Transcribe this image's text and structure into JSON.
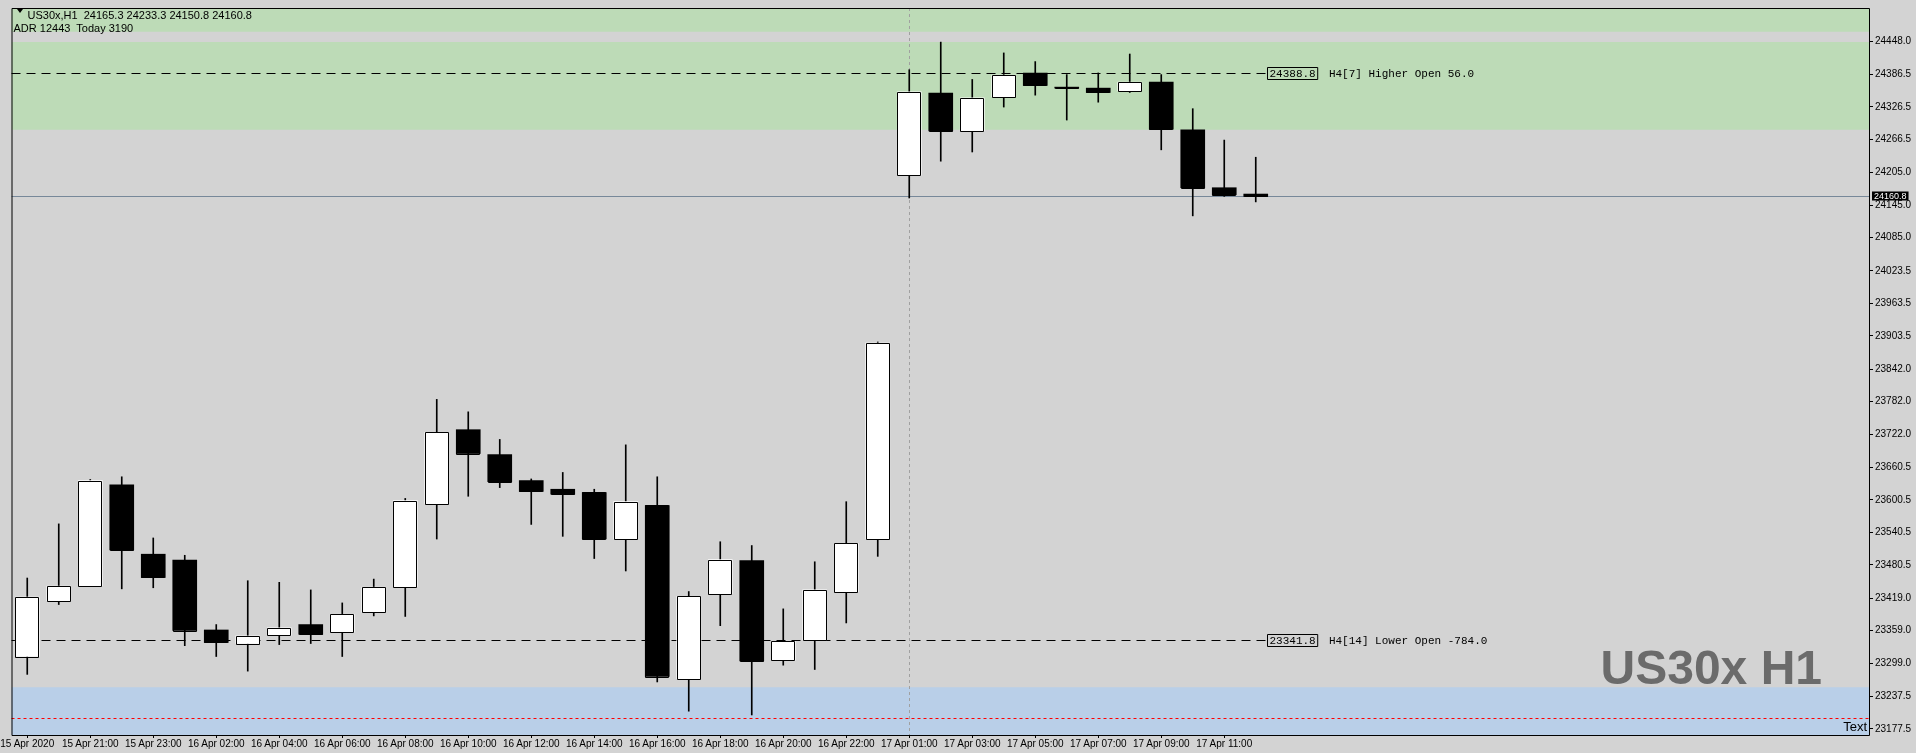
{
  "chart_data": {
    "type": "candlestick",
    "title": "US30x,H1  24165.3 24233.3 24150.8 24160.8",
    "subtitle": "ADR 12443  Today 3190",
    "categories": [
      "15 Apr 2020",
      null,
      "15 Apr 21:00",
      null,
      "15 Apr 23:00",
      null,
      "16 Apr 02:00",
      null,
      "16 Apr 04:00",
      null,
      "16 Apr 06:00",
      null,
      "16 Apr 08:00",
      null,
      "16 Apr 10:00",
      null,
      "16 Apr 12:00",
      null,
      "16 Apr 14:00",
      null,
      "16 Apr 16:00",
      null,
      "16 Apr 18:00",
      null,
      "16 Apr 20:00",
      null,
      "16 Apr 22:00",
      null,
      "17 Apr 01:00",
      null,
      "17 Apr 03:00",
      null,
      "17 Apr 05:00",
      null,
      "17 Apr 07:00",
      null,
      "17 Apr 09:00",
      null,
      "17 Apr 11:00",
      null,
      null,
      null,
      null,
      null,
      null,
      null,
      null,
      null,
      null,
      null,
      null,
      null,
      null,
      null,
      null,
      null,
      null,
      null,
      null
    ],
    "ohlc": [
      [
        23311,
        23456,
        23278,
        23421
      ],
      [
        23414,
        23556,
        23407,
        23441
      ],
      [
        23442,
        23638,
        23441,
        23636
      ],
      [
        23628,
        23643,
        23436,
        23508
      ],
      [
        23500,
        23530,
        23438,
        23457
      ],
      [
        23489,
        23498,
        23331,
        23359
      ],
      [
        23360,
        23370,
        23311,
        23337
      ],
      [
        23335,
        23451,
        23284,
        23349
      ],
      [
        23350,
        23448,
        23333,
        23364
      ],
      [
        23370,
        23434,
        23335,
        23352
      ],
      [
        23356,
        23410,
        23311,
        23389
      ],
      [
        23393,
        23454,
        23386,
        23439
      ],
      [
        23440,
        23603,
        23385,
        23599
      ],
      [
        23593,
        23786,
        23528,
        23725
      ],
      [
        23730,
        23763,
        23607,
        23686
      ],
      [
        23684,
        23712,
        23623,
        23634
      ],
      [
        23636,
        23639,
        23555,
        23616
      ],
      [
        23620,
        23651,
        23533,
        23611
      ],
      [
        23614,
        23620,
        23492,
        23528
      ],
      [
        23528,
        23702,
        23469,
        23597
      ],
      [
        23590,
        23643,
        23264,
        23274
      ],
      [
        23270,
        23431,
        23210,
        23422
      ],
      [
        23427,
        23523,
        23368,
        23490
      ],
      [
        23488,
        23516,
        23203,
        23303
      ],
      [
        23304,
        23399,
        23295,
        23339
      ],
      [
        23341.8,
        23486,
        23287,
        23434
      ],
      [
        23431,
        23597,
        23373,
        23520
      ],
      [
        23528,
        23892,
        23496,
        23890
      ],
      [
        24200,
        24395,
        24158,
        24354
      ],
      [
        24352,
        24446,
        24226,
        24282
      ],
      [
        24282,
        24377,
        24243,
        24343
      ],
      [
        24345,
        24426,
        24326,
        24385
      ],
      [
        24388.8,
        24410,
        24348,
        24366
      ],
      [
        24362,
        24386,
        24302,
        24361
      ],
      [
        24361,
        24389,
        24335,
        24353
      ],
      [
        24356,
        24424,
        24353,
        24372
      ],
      [
        24372,
        24386,
        24247,
        24285
      ],
      [
        24284,
        24323,
        24125,
        24177
      ],
      [
        24177,
        24265,
        24161,
        24164
      ],
      [
        24165.3,
        24233.3,
        24150.8,
        24160.8
      ],
      null,
      null,
      null,
      null,
      null,
      null,
      null,
      null,
      null,
      null,
      null,
      null,
      null,
      null,
      null,
      null,
      null,
      null,
      null
    ],
    "colors": [
      "#ffffff",
      "#ffffff",
      "#ffffff",
      "#000000",
      "#000000",
      "#000000",
      "#000000",
      "#ffffff",
      "#ffffff",
      "#000000",
      "#ffffff",
      "#ffffff",
      "#ffffff",
      "#ffffff",
      "#000000",
      "#000000",
      "#000000",
      "#000000",
      "#000000",
      "#ffffff",
      "#000000",
      "#ffffff",
      "#ffffff",
      "#000000",
      "#ffffff",
      "#ffffff",
      "#ffffff",
      "#ffffff",
      "#ffffff",
      "#000000",
      "#ffffff",
      "#ffffff",
      "#000000",
      "#000000",
      "#000000",
      "#ffffff",
      "#000000",
      "#000000",
      "#000000",
      "#000000",
      null,
      null,
      null,
      null,
      null,
      null,
      null,
      null,
      null,
      null,
      null,
      null,
      null,
      null,
      null,
      null,
      null,
      null,
      null
    ],
    "ylim": [
      23166,
      24509
    ],
    "yticks": [
      {
        "value": 24448,
        "label": "24448.0"
      },
      {
        "value": 24386.5,
        "label": "24386.5"
      },
      {
        "value": 24326.5,
        "label": "24326.5"
      },
      {
        "value": 24266.5,
        "label": "24266.5"
      },
      {
        "value": 24205,
        "label": "24205.0"
      },
      {
        "value": 24145,
        "label": "24145.0"
      },
      {
        "value": 24085,
        "label": "24085.0"
      },
      {
        "value": 24023.5,
        "label": "24023.5"
      },
      {
        "value": 23963.5,
        "label": "23963.5"
      },
      {
        "value": 23903.5,
        "label": "23903.5"
      },
      {
        "value": 23842,
        "label": "23842.0"
      },
      {
        "value": 23782,
        "label": "23782.0"
      },
      {
        "value": 23722,
        "label": "23722.0"
      },
      {
        "value": 23660.5,
        "label": "23660.5"
      },
      {
        "value": 23600.5,
        "label": "23600.5"
      },
      {
        "value": 23540.5,
        "label": "23540.5"
      },
      {
        "value": 23480.5,
        "label": "23480.5"
      },
      {
        "value": 23419,
        "label": "23419.0"
      },
      {
        "value": 23359,
        "label": "23359.0"
      },
      {
        "value": 23299,
        "label": "23299.0"
      },
      {
        "value": 23237.5,
        "label": "23237.5"
      },
      {
        "value": 23177.5,
        "label": "23177.5"
      }
    ],
    "bands": [
      {
        "axis": "y",
        "from": 24465,
        "to": 24509,
        "color": "#bddbb7"
      },
      {
        "axis": "y",
        "from": 24284,
        "to": 24446,
        "color": "#bddbb7"
      },
      {
        "axis": "y",
        "from": 23166,
        "to": 23254,
        "color": "#b9cfe8"
      }
    ],
    "ref_lines": [
      {
        "axis": "y",
        "value": 24160.8,
        "label": "24160.8",
        "color": "#778899"
      },
      {
        "axis": "y",
        "value": 24388.8,
        "label": "24388.8  H4[7] Higher Open 56.0",
        "color": "#000000",
        "line_style": "dashed"
      },
      {
        "axis": "y",
        "value": 23341.8,
        "label": "23341.8  H4[14] Lower Open -784.0",
        "color": "#000000",
        "line_style": "dashed"
      },
      {
        "axis": "y",
        "value": 23198,
        "color": "#ff0000",
        "line_style": "dotted"
      },
      {
        "axis": "x",
        "value": "17 Apr 01:00",
        "color": "#a0a0a0",
        "line_style": "dotted"
      }
    ],
    "annotations": [
      "US30x H1",
      "Text"
    ]
  }
}
